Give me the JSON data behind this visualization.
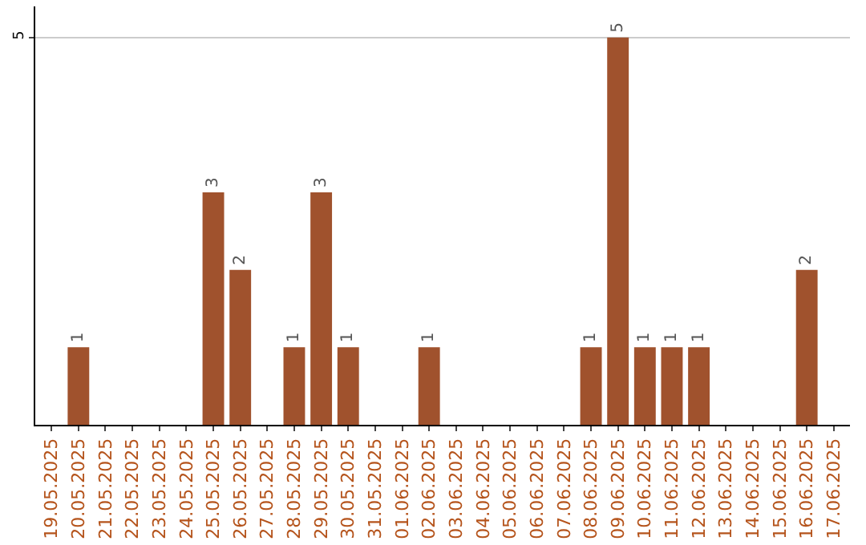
{
  "chart_data": {
    "type": "bar",
    "categories": [
      "19.05.2025",
      "20.05.2025",
      "21.05.2025",
      "22.05.2025",
      "23.05.2025",
      "24.05.2025",
      "25.05.2025",
      "26.05.2025",
      "27.05.2025",
      "28.05.2025",
      "29.05.2025",
      "30.05.2025",
      "31.05.2025",
      "01.06.2025",
      "02.06.2025",
      "03.06.2025",
      "04.06.2025",
      "05.06.2025",
      "06.06.2025",
      "07.06.2025",
      "08.06.2025",
      "09.06.2025",
      "10.06.2025",
      "11.06.2025",
      "12.06.2025",
      "13.06.2025",
      "14.06.2025",
      "15.06.2025",
      "16.06.2025",
      "17.06.2025"
    ],
    "values": [
      0,
      1,
      0,
      0,
      0,
      0,
      3,
      2,
      0,
      1,
      3,
      1,
      0,
      0,
      1,
      0,
      0,
      0,
      0,
      0,
      1,
      5,
      1,
      1,
      1,
      0,
      0,
      0,
      2,
      0
    ],
    "value_labels": [
      null,
      "1",
      null,
      null,
      null,
      null,
      "3",
      "2",
      null,
      "1",
      "3",
      "1",
      null,
      null,
      "1",
      null,
      null,
      null,
      null,
      null,
      "1",
      "5",
      "1",
      "1",
      "1",
      null,
      null,
      null,
      "2",
      null
    ],
    "color": "#a0522d",
    "ylim": [
      0,
      5.4
    ],
    "yticks": [
      5
    ],
    "grid": "y",
    "legend": false
  }
}
